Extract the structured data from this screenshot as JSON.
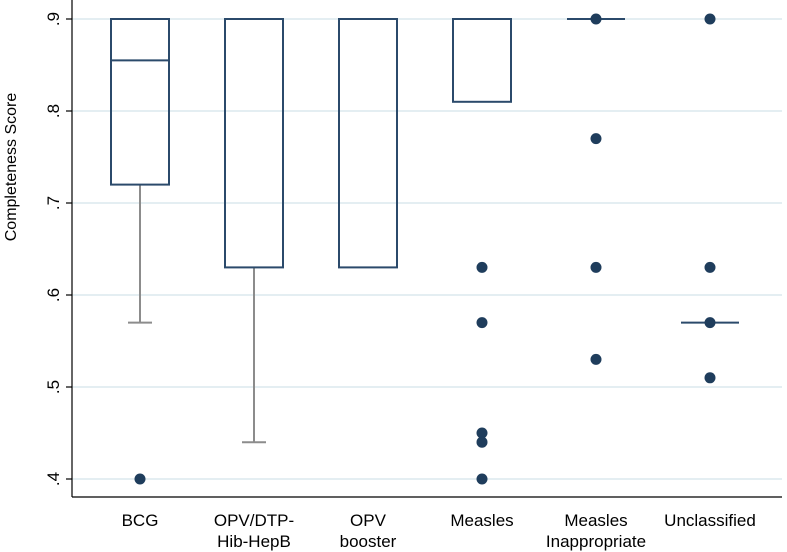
{
  "chart_data": {
    "type": "box",
    "title": "",
    "xlabel": "",
    "ylabel": "Completeness  Score",
    "ylim": [
      0.39,
      0.905
    ],
    "y_ticks": [
      ".4",
      ".5",
      ".6",
      ".7",
      ".8",
      ".9"
    ],
    "y_tick_values": [
      0.4,
      0.5,
      0.6,
      0.7,
      0.8,
      0.9
    ],
    "grid": true,
    "categories": [
      [
        "BCG"
      ],
      [
        "OPV/DTP-",
        "Hib-HepB"
      ],
      [
        "OPV",
        "booster"
      ],
      [
        "Measles"
      ],
      [
        "Measles",
        "Inappropriate"
      ],
      [
        "Unclassified"
      ]
    ],
    "boxes": [
      {
        "name": "BCG",
        "q1": 0.72,
        "median": 0.855,
        "q3": 0.9,
        "whisker_low": 0.57,
        "whisker_high": 0.9,
        "outliers": [
          0.4
        ]
      },
      {
        "name": "OPV/DTP-Hib-HepB",
        "q1": 0.63,
        "median": 0.9,
        "q3": 0.9,
        "whisker_low": 0.44,
        "whisker_high": 0.9,
        "outliers": []
      },
      {
        "name": "OPV booster",
        "q1": 0.63,
        "median": 0.9,
        "q3": 0.9,
        "whisker_low": 0.63,
        "whisker_high": 0.9,
        "outliers": []
      },
      {
        "name": "Measles",
        "q1": 0.81,
        "median": 0.9,
        "q3": 0.9,
        "whisker_low": 0.81,
        "whisker_high": 0.9,
        "outliers": [
          0.63,
          0.57,
          0.45,
          0.44,
          0.4
        ]
      },
      {
        "name": "Measles Inappropriate",
        "q1": 0.9,
        "median": 0.9,
        "q3": 0.9,
        "whisker_low": 0.9,
        "whisker_high": 0.9,
        "outliers": [
          0.9,
          0.77,
          0.63,
          0.53
        ]
      },
      {
        "name": "Unclassified",
        "q1": 0.57,
        "median": 0.57,
        "q3": 0.57,
        "whisker_low": 0.57,
        "whisker_high": 0.57,
        "outliers": [
          0.9,
          0.63,
          0.57,
          0.51
        ]
      }
    ],
    "colors": {
      "box": "#2b4a6b",
      "whisker": "#8c8c8c",
      "dot": "#1f3d5c",
      "grid": "#e4eef2",
      "axis": "#000000"
    }
  }
}
